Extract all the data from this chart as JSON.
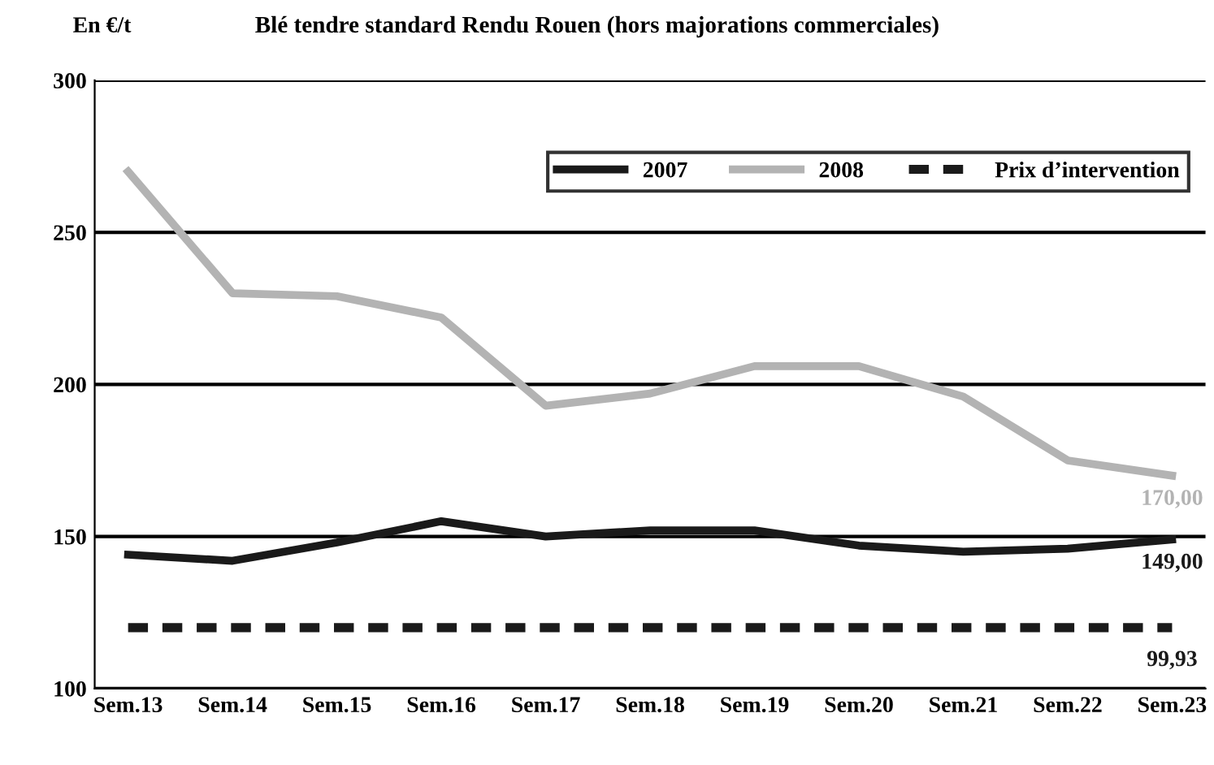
{
  "chart_data": {
    "type": "line",
    "title": "Blé tendre standard Rendu Rouen (hors majorations commerciales)",
    "ylabel": "En €/t",
    "categories": [
      "Sem.13",
      "Sem.14",
      "Sem.15",
      "Sem.16",
      "Sem.17",
      "Sem.18",
      "Sem.19",
      "Sem.20",
      "Sem.21",
      "Sem.22",
      "Sem.23"
    ],
    "series": [
      {
        "name": "2007",
        "color": "#1a1a1a",
        "line_style": "solid",
        "values": [
          144,
          142,
          148,
          155,
          150,
          152,
          152,
          147,
          145,
          146,
          149
        ],
        "value_labels": [
          null,
          null,
          null,
          null,
          null,
          null,
          null,
          null,
          null,
          null,
          "149,00"
        ]
      },
      {
        "name": "2008",
        "color": "#b3b3b3",
        "line_style": "solid",
        "values": [
          270,
          230,
          229,
          222,
          193,
          197,
          206,
          206,
          196,
          175,
          170
        ],
        "value_labels": [
          null,
          null,
          null,
          null,
          null,
          null,
          null,
          null,
          null,
          null,
          "170,00"
        ]
      },
      {
        "name": "Prix d’intervention",
        "color": "#1a1a1a",
        "line_style": "dashed",
        "values": [
          120,
          120,
          120,
          120,
          120,
          120,
          120,
          120,
          120,
          120,
          120
        ]
      }
    ],
    "annotations": [
      "99,93"
    ],
    "ylim": [
      100,
      300
    ],
    "yticks": [
      100,
      150,
      200,
      250,
      300
    ],
    "grid": "y",
    "legend": "top right",
    "marker": "none"
  }
}
